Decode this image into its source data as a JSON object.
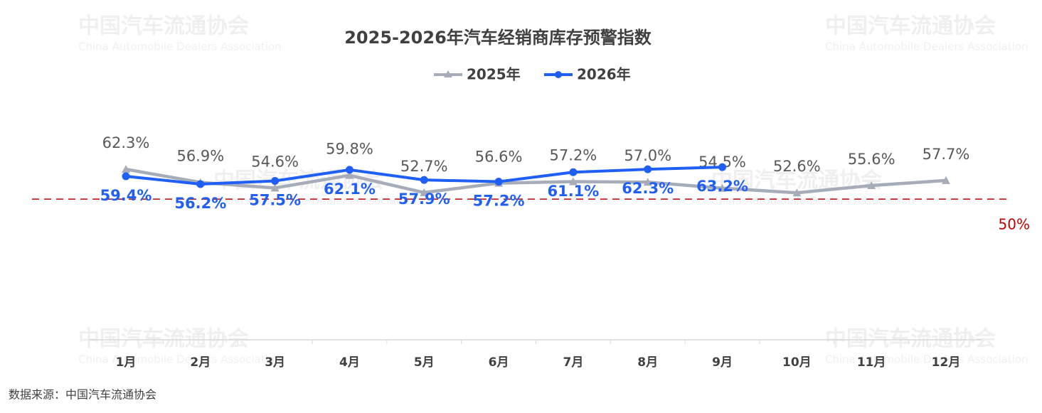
{
  "chart_data": {
    "type": "line",
    "title": "2025-2026年汽车经销商库存预警指数",
    "categories": [
      "1月",
      "2月",
      "3月",
      "4月",
      "5月",
      "6月",
      "7月",
      "8月",
      "9月",
      "10月",
      "11月",
      "12月"
    ],
    "series": [
      {
        "name": "2025年",
        "color": "#a6adb9",
        "marker": "triangle",
        "values": [
          62.3,
          56.9,
          54.6,
          59.8,
          52.7,
          56.6,
          57.2,
          57.0,
          54.5,
          52.6,
          55.6,
          57.7
        ],
        "value_labels": [
          "62.3%",
          "56.9%",
          "54.6%",
          "59.8%",
          "52.7%",
          "56.6%",
          "57.2%",
          "57.0%",
          "54.5%",
          "52.6%",
          "55.6%",
          "57.7%"
        ]
      },
      {
        "name": "2026年",
        "color": "#1f5ff5",
        "marker": "circle",
        "values": [
          59.4,
          56.2,
          57.5,
          62.1,
          57.9,
          57.2,
          61.1,
          62.3,
          63.2,
          null,
          null,
          null
        ],
        "value_labels": [
          "59.4%",
          "56.2%",
          "57.5%",
          "62.1%",
          "57.9%",
          "57.2%",
          "61.1%",
          "62.3%",
          "63.2%",
          null,
          null,
          null
        ]
      }
    ],
    "ylim": [
      -8,
      94
    ],
    "reference_line": {
      "value": 50,
      "label": "50%",
      "color": "#c00000"
    },
    "source": "数据来源：中国汽车流通协会",
    "watermark": {
      "cn": "中国汽车流通协会",
      "en": "China Automobile Dealers Association"
    }
  }
}
